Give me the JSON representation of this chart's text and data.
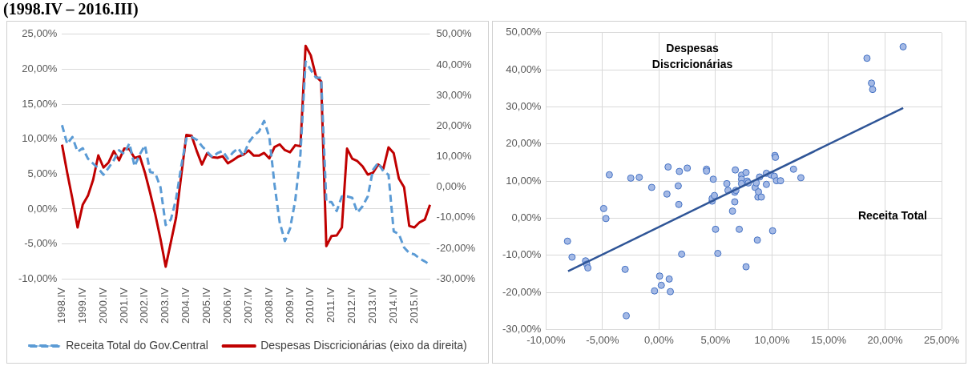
{
  "chart_data": [
    {
      "type": "line",
      "title": "(1998.IV – 2016.III)",
      "categories": [
        "1998.IV",
        null,
        null,
        null,
        "1999.IV",
        null,
        null,
        null,
        "2000.IV",
        null,
        null,
        null,
        "2001.IV",
        null,
        null,
        null,
        "2002.IV",
        null,
        null,
        null,
        "2003.IV",
        null,
        null,
        null,
        "2004.IV",
        null,
        null,
        null,
        "2005.IV",
        null,
        null,
        null,
        "2006.IV",
        null,
        null,
        null,
        "2007.IV",
        null,
        null,
        null,
        "2008.IV",
        null,
        null,
        null,
        "2009.IV",
        null,
        null,
        null,
        "2010.IV",
        null,
        null,
        null,
        "2011.IV",
        null,
        null,
        null,
        "2012.IV",
        null,
        null,
        null,
        "2013.IV",
        null,
        null,
        null,
        "2014.IV",
        null,
        null,
        null,
        "2015.IV",
        null,
        null,
        null
      ],
      "series": [
        {
          "name": "Receita Total do Gov.Central",
          "color": "#5b9bd5",
          "line_style": "dashed",
          "values": [
            12.0,
            9.3,
            10.3,
            8.2,
            8.7,
            7.2,
            6.5,
            5.8,
            4.9,
            5.9,
            7.0,
            8.4,
            7.9,
            9.4,
            6.1,
            7.8,
            9.1,
            5.3,
            5.1,
            3.1,
            -2.3,
            -1.5,
            1.4,
            6.1,
            10.1,
            10.3,
            9.9,
            9.0,
            8.2,
            7.4,
            8.0,
            8.3,
            7.2,
            8.1,
            8.7,
            7.6,
            9.5,
            10.5,
            11.1,
            12.6,
            10.3,
            3.5,
            -1.9,
            -4.6,
            -2.8,
            1.2,
            7.8,
            21.1,
            19.9,
            18.8,
            18.8,
            1.0,
            1.0,
            -0.3,
            1.8,
            1.8,
            1.6,
            -0.5,
            0.4,
            1.8,
            5.6,
            6.6,
            5.4,
            4.9,
            -3.2,
            -3.6,
            -5.5,
            -6.3,
            -6.5,
            -7.1,
            -7.5,
            -8.0
          ]
        },
        {
          "name": "Despesas Discricionárias (eixo da direita)",
          "color": "#c00000",
          "line_style": "solid",
          "axis": "y2",
          "values": [
            13.9,
            4.7,
            -3.8,
            -13.2,
            -5.7,
            -2.8,
            2.4,
            10.4,
            6.4,
            8.1,
            11.8,
            8.8,
            12.6,
            12.4,
            9.5,
            10.1,
            4.7,
            -1.9,
            -9.0,
            -17.0,
            -26.0,
            -18.0,
            -10.0,
            3.8,
            17.1,
            16.8,
            11.8,
            7.4,
            11.1,
            9.8,
            9.6,
            10.1,
            7.8,
            8.8,
            10.0,
            10.6,
            12.0,
            10.3,
            10.3,
            11.2,
            9.4,
            13.1,
            14.0,
            12.1,
            11.4,
            13.7,
            13.4,
            46.2,
            43.1,
            36.2,
            34.6,
            -19.3,
            -16.0,
            -15.8,
            -13.2,
            12.6,
            9.3,
            8.5,
            6.8,
            4.1,
            4.7,
            7.4,
            6.0,
            13.0,
            11.1,
            2.8,
            0.0,
            -12.7,
            -13.2,
            -11.5,
            -10.6,
            -5.8
          ]
        }
      ],
      "ylim": [
        -10,
        25
      ],
      "yticks": [
        {
          "value": -10,
          "label": "-10,00%"
        },
        {
          "value": -5,
          "label": "-5,00%"
        },
        {
          "value": 0,
          "label": "0,00%"
        },
        {
          "value": 5,
          "label": "5,00%"
        },
        {
          "value": 10,
          "label": "10,00%"
        },
        {
          "value": 15,
          "label": "15,00%"
        },
        {
          "value": 20,
          "label": "20,00%"
        },
        {
          "value": 25,
          "label": "25,00%"
        }
      ],
      "y2lim": [
        -30,
        50
      ],
      "y2ticks": [
        {
          "value": -30,
          "label": "-30,00%"
        },
        {
          "value": -20,
          "label": "-20,00%"
        },
        {
          "value": -10,
          "label": "-10,00%"
        },
        {
          "value": 0,
          "label": "0,00%"
        },
        {
          "value": 10,
          "label": "10,00%"
        },
        {
          "value": 20,
          "label": "20,00%"
        },
        {
          "value": 30,
          "label": "30,00%"
        },
        {
          "value": 40,
          "label": "40,00%"
        },
        {
          "value": 50,
          "label": "50,00%"
        }
      ],
      "grid": "y",
      "legend": "bottom",
      "marker": "none"
    },
    {
      "type": "scatter",
      "xlabel": "Receita Total",
      "ylabel": "Despesas Discricionárias",
      "series": [
        {
          "type": "scatter",
          "color": "#a4b9e5",
          "marker": "circle",
          "x": [
            -8.1,
            -7.7,
            -6.5,
            -6.4,
            -6.3,
            -4.9,
            -4.7,
            -4.4,
            -3.0,
            -2.9,
            -2.5,
            -1.75,
            -0.65,
            -0.4,
            0.05,
            0.2,
            0.7,
            0.8,
            0.9,
            1.0,
            1.7,
            1.75,
            1.8,
            2.0,
            2.5,
            4.2,
            4.2,
            4.7,
            4.7,
            4.8,
            4.9,
            5.0,
            5.2,
            6.0,
            6.1,
            6.5,
            6.7,
            6.7,
            6.75,
            6.8,
            7.1,
            7.3,
            7.3,
            7.3,
            7.7,
            7.7,
            7.8,
            7.9,
            8.5,
            8.6,
            8.7,
            8.75,
            8.8,
            8.9,
            9.05,
            9.5,
            9.5,
            9.9,
            10.05,
            10.2,
            10.4,
            10.75,
            11.9,
            12.55,
            10.25,
            10.3,
            18.4,
            18.8,
            18.9,
            21.6
          ],
          "values": [
            -6.2,
            -10.5,
            -11.5,
            -12.4,
            -13.4,
            2.6,
            -0.1,
            11.7,
            -13.8,
            -26.3,
            10.8,
            11.0,
            8.3,
            -19.6,
            -15.6,
            -18.1,
            6.5,
            13.8,
            -16.4,
            -19.8,
            8.7,
            3.7,
            12.6,
            -9.7,
            13.5,
            13.2,
            12.7,
            4.6,
            5.3,
            10.5,
            6.1,
            -3.0,
            -9.5,
            9.3,
            7.5,
            1.9,
            4.4,
            7.0,
            13.0,
            7.5,
            -3.0,
            11.6,
            10.5,
            9.3,
            12.3,
            -13.1,
            10.0,
            9.5,
            8.3,
            9.5,
            -5.9,
            5.7,
            7.1,
            11.1,
            5.7,
            12.1,
            9.1,
            11.7,
            -3.4,
            11.3,
            10.1,
            10.1,
            13.2,
            10.9,
            16.9,
            16.4,
            43.1,
            36.4,
            34.7,
            46.2
          ]
        },
        {
          "type": "line",
          "color": "#2f5597",
          "marker": "none",
          "x": [
            -8.05,
            21.6
          ],
          "values": [
            -14.3,
            29.7
          ]
        }
      ],
      "xlim": [
        -10,
        25
      ],
      "xticks": [
        {
          "value": -10,
          "label": "-10,00%"
        },
        {
          "value": -5,
          "label": "-5,00%"
        },
        {
          "value": 0,
          "label": "0,00%"
        },
        {
          "value": 5,
          "label": "5,00%"
        },
        {
          "value": 10,
          "label": "10,00%"
        },
        {
          "value": 15,
          "label": "15,00%"
        },
        {
          "value": 20,
          "label": "20,00%"
        },
        {
          "value": 25,
          "label": "25,00%"
        }
      ],
      "ylim": [
        -30,
        50
      ],
      "yticks": [
        {
          "value": -30,
          "label": "-30,00%"
        },
        {
          "value": -20,
          "label": "-20,00%"
        },
        {
          "value": -10,
          "label": "-10,00%"
        },
        {
          "value": 0,
          "label": "0,00%"
        },
        {
          "value": 10,
          "label": "10,00%"
        },
        {
          "value": 20,
          "label": "20,00%"
        },
        {
          "value": 30,
          "label": "30,00%"
        },
        {
          "value": 40,
          "label": "40,00%"
        },
        {
          "value": 50,
          "label": "50,00%"
        }
      ],
      "grid": true,
      "legend": false
    }
  ]
}
